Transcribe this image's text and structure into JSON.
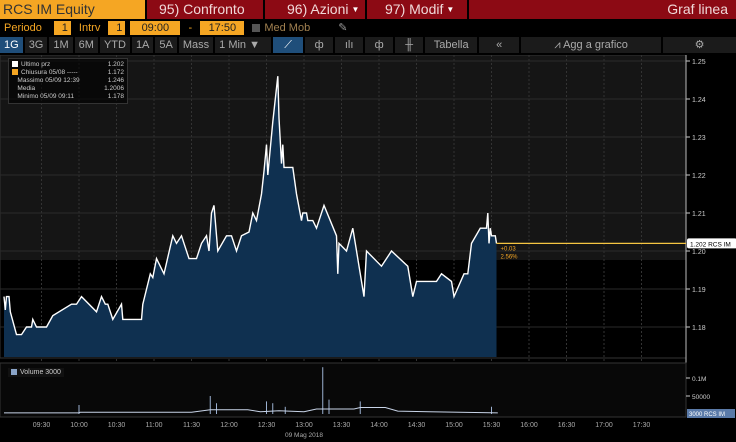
{
  "header": {
    "ticker": "RCS IM Equity",
    "compare": "95) Confronto",
    "actions": "96) Azioni",
    "modify": "97) Modif",
    "chart_type": "Graf linea"
  },
  "params": {
    "period_label": "Periodo",
    "period_value": "1",
    "interval_label": "Intrv",
    "interval_value": "1",
    "start_time": "09:00",
    "dash": "-",
    "end_time": "17:50",
    "moving_avg": "Med Mob"
  },
  "toolbar": {
    "ranges": [
      "1G",
      "3G",
      "1M",
      "6M",
      "YTD",
      "1A",
      "5A",
      "Mass"
    ],
    "active_range": "1G",
    "interval": "1 Min ▼",
    "table": "Tabella",
    "collapse": "«",
    "add_to_chart": "Agg a grafico"
  },
  "legend": [
    {
      "label": "Ultimo prz",
      "value": "1.202",
      "color": "#ffffff"
    },
    {
      "label": "Chiusura 05/08 -----",
      "value": "1.172",
      "color": "#f5a623"
    },
    {
      "label": "Massimo 05/09 12:39",
      "value": "1.246",
      "color": ""
    },
    {
      "label": "Media",
      "value": "1.2006",
      "color": ""
    },
    {
      "label": "Minimo 05/09 09:11",
      "value": "1.178",
      "color": ""
    }
  ],
  "volume_legend": "Volume 3000",
  "colors": {
    "accent": "#f5a623",
    "header_red": "#8c0a14",
    "area_fill": "#0f3050",
    "line": "#ffffff",
    "last_price_line": "#f5c542"
  },
  "chart_data": {
    "type": "area",
    "xlabel": "09 Mag 2018",
    "x_ticks": [
      "09:30",
      "10:00",
      "10:30",
      "11:00",
      "11:30",
      "12:00",
      "12:30",
      "13:00",
      "13:30",
      "14:00",
      "14:30",
      "15:00",
      "15:30",
      "16:00",
      "16:30",
      "17:00",
      "17:30"
    ],
    "x_range": [
      "09:00",
      "17:50"
    ],
    "y_ticks": [
      "1.18",
      "1.19",
      "1.20",
      "1.21",
      "1.22",
      "1.23",
      "1.24",
      "1.25"
    ],
    "ylim": [
      1.1725,
      1.2525
    ],
    "last_label": "1.202 RCS IM",
    "change": "+0.03",
    "change_pct": "2.56%",
    "price": [
      [
        "09:00",
        1.188
      ],
      [
        "09:01",
        1.1845
      ],
      [
        "09:02",
        1.188
      ],
      [
        "09:04",
        1.188
      ],
      [
        "09:05",
        1.184
      ],
      [
        "09:10",
        1.178
      ],
      [
        "09:14",
        1.178
      ],
      [
        "09:18",
        1.18
      ],
      [
        "09:22",
        1.18
      ],
      [
        "09:23",
        1.182
      ],
      [
        "09:26",
        1.18
      ],
      [
        "09:34",
        1.18
      ],
      [
        "09:39",
        1.183
      ],
      [
        "09:54",
        1.186
      ],
      [
        "09:58",
        1.186
      ],
      [
        "10:02",
        1.188
      ],
      [
        "10:14",
        1.184
      ],
      [
        "10:18",
        1.188
      ],
      [
        "10:21",
        1.186
      ],
      [
        "10:23",
        1.186
      ],
      [
        "10:27",
        1.182
      ],
      [
        "10:34",
        1.186
      ],
      [
        "10:35",
        1.182
      ],
      [
        "10:50",
        1.182
      ],
      [
        "10:51",
        1.186
      ],
      [
        "10:57",
        1.194
      ],
      [
        "10:59",
        1.193
      ],
      [
        "11:02",
        1.198
      ],
      [
        "11:08",
        1.194
      ],
      [
        "11:15",
        1.204
      ],
      [
        "11:18",
        1.202
      ],
      [
        "11:22",
        1.204
      ],
      [
        "11:28",
        1.198
      ],
      [
        "11:34",
        1.198
      ],
      [
        "11:36",
        1.2
      ],
      [
        "11:38",
        1.202
      ],
      [
        "11:42",
        1.204
      ],
      [
        "11:44",
        1.2
      ],
      [
        "11:46",
        1.21
      ],
      [
        "11:48",
        1.212
      ],
      [
        "11:51",
        1.2
      ],
      [
        "11:58",
        1.204
      ],
      [
        "12:02",
        1.204
      ],
      [
        "12:06",
        1.2
      ],
      [
        "12:10",
        1.204
      ],
      [
        "12:16",
        1.205
      ],
      [
        "12:19",
        1.21
      ],
      [
        "12:22",
        1.208
      ],
      [
        "12:26",
        1.215
      ],
      [
        "12:28",
        1.221
      ],
      [
        "12:30",
        1.228
      ],
      [
        "12:31",
        1.22
      ],
      [
        "12:35",
        1.234
      ],
      [
        "12:39",
        1.246
      ],
      [
        "12:40",
        1.235
      ],
      [
        "12:42",
        1.223
      ],
      [
        "12:43",
        1.228
      ],
      [
        "12:44",
        1.222
      ],
      [
        "12:51",
        1.222
      ],
      [
        "12:54",
        1.215
      ],
      [
        "12:58",
        1.208
      ],
      [
        "12:59",
        1.21
      ],
      [
        "13:02",
        1.21
      ],
      [
        "13:03",
        1.208
      ],
      [
        "13:07",
        1.208
      ],
      [
        "13:10",
        1.206
      ],
      [
        "13:16",
        1.212
      ],
      [
        "13:26",
        1.204
      ],
      [
        "13:27",
        1.194
      ],
      [
        "13:28",
        1.202
      ],
      [
        "13:34",
        1.2
      ],
      [
        "13:39",
        1.206
      ],
      [
        "13:48",
        1.188
      ],
      [
        "13:50",
        1.2
      ],
      [
        "14:02",
        1.196
      ],
      [
        "14:10",
        1.2
      ],
      [
        "14:23",
        1.196
      ],
      [
        "14:27",
        1.188
      ],
      [
        "14:30",
        1.192
      ],
      [
        "14:46",
        1.192
      ],
      [
        "14:50",
        1.194
      ],
      [
        "14:58",
        1.192
      ],
      [
        "15:00",
        1.188
      ],
      [
        "15:08",
        1.194
      ],
      [
        "15:11",
        1.194
      ],
      [
        "15:14",
        1.202
      ],
      [
        "15:21",
        1.206
      ],
      [
        "15:26",
        1.206
      ],
      [
        "15:27",
        1.21
      ],
      [
        "15:28",
        1.202
      ],
      [
        "15:29",
        1.206
      ],
      [
        "15:30",
        1.204
      ],
      [
        "15:33",
        1.204
      ],
      [
        "15:34",
        1.202
      ]
    ],
    "volume": {
      "y_ticks": [
        "0.1M",
        "50000"
      ],
      "last_label": "3000 RCS IM",
      "spikes": [
        [
          "10:00",
          25000
        ],
        [
          "11:45",
          50000
        ],
        [
          "11:50",
          30000
        ],
        [
          "12:30",
          35000
        ],
        [
          "12:35",
          30000
        ],
        [
          "12:45",
          20000
        ],
        [
          "13:15",
          130000
        ],
        [
          "13:20",
          40000
        ],
        [
          "13:45",
          35000
        ],
        [
          "15:30",
          20000
        ]
      ],
      "line": [
        [
          "09:00",
          3000
        ],
        [
          "10:00",
          3000
        ],
        [
          "10:01",
          5000
        ],
        [
          "11:30",
          5000
        ],
        [
          "11:45",
          12000
        ],
        [
          "12:15",
          12000
        ],
        [
          "12:25",
          6000
        ],
        [
          "12:40",
          9000
        ],
        [
          "13:00",
          6000
        ],
        [
          "13:10",
          14000
        ],
        [
          "13:40",
          14000
        ],
        [
          "13:45",
          18000
        ],
        [
          "14:05",
          18000
        ],
        [
          "14:15",
          8000
        ],
        [
          "14:40",
          6000
        ],
        [
          "15:35",
          3000
        ]
      ]
    }
  }
}
